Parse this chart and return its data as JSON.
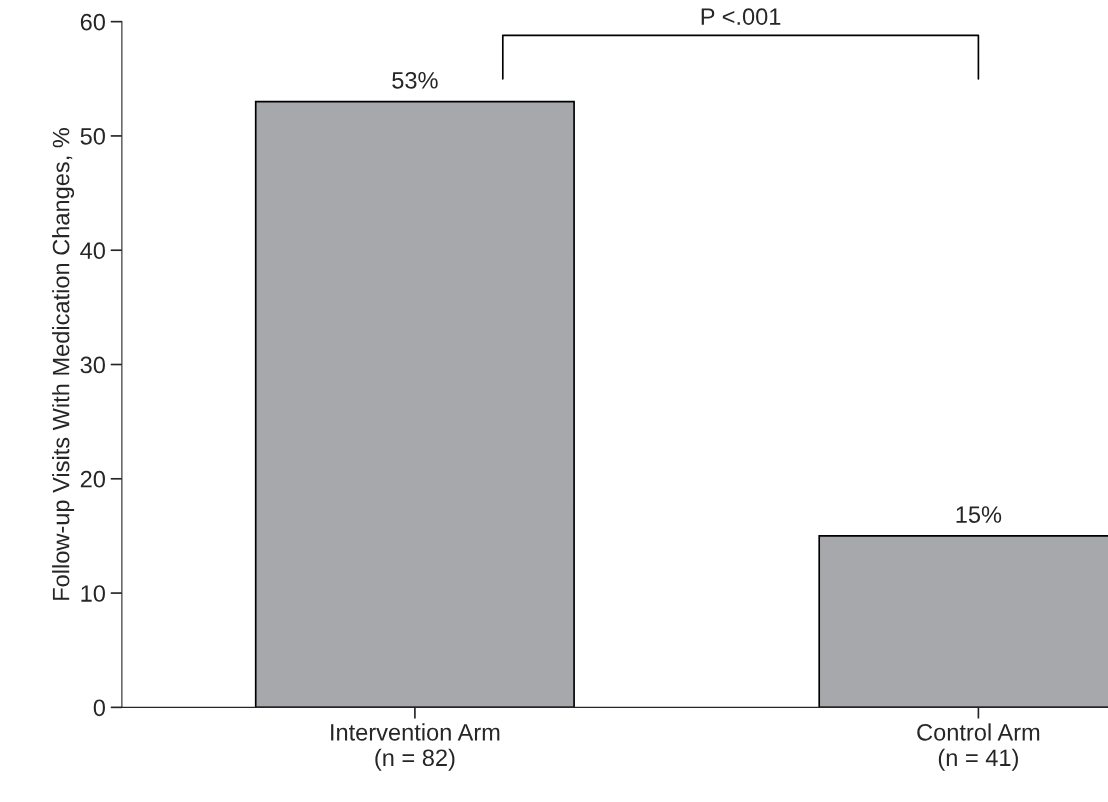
{
  "chart_data": {
    "type": "bar",
    "ylabel": "Follow-up Visits With Medication Changes, %",
    "categories": [
      "Intervention Arm\n(n = 82)",
      "Control Arm\n(n = 41)"
    ],
    "values": [
      53,
      15
    ],
    "color": "#a7a8ac",
    "value_labels": [
      "53%",
      "15%"
    ],
    "ylim": [
      0,
      60
    ],
    "yticks": [
      0,
      10,
      20,
      30,
      40,
      50,
      60
    ],
    "grid": false,
    "annotations": [
      "P <.001"
    ]
  }
}
